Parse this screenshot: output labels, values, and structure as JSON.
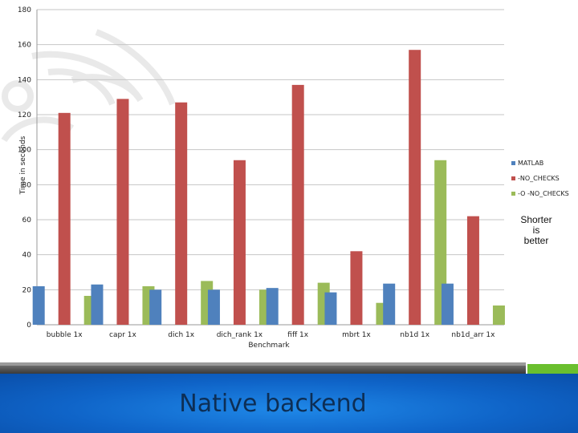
{
  "chart_data": {
    "type": "bar",
    "categories": [
      "bubble 1x",
      "capr 1x",
      "dich 1x",
      "dich_rank 1x",
      "fiff 1x",
      "mbrt 1x",
      "nb1d 1x",
      "nb1d_arr 1x"
    ],
    "series": [
      {
        "name": "MATLAB",
        "color": "#4f81bd",
        "values": [
          22,
          23,
          20,
          20,
          21,
          18.5,
          23.5,
          23.5
        ]
      },
      {
        "name": "-NO_CHECKS",
        "color": "#c0504d",
        "values": [
          121,
          129,
          127,
          94,
          137,
          42,
          157,
          62
        ]
      },
      {
        "name": "-O -NO_CHECKS",
        "color": "#9bbb59",
        "values": [
          16.5,
          22,
          25,
          20,
          24,
          12.5,
          94,
          11
        ]
      }
    ],
    "title": "",
    "xlabel": "Benchmark",
    "ylabel": "Time in seconds",
    "ylim": [
      0,
      180
    ],
    "yticks": [
      0,
      20,
      40,
      60,
      80,
      100,
      120,
      140,
      160,
      180
    ],
    "grid": true,
    "legend_position": "right"
  },
  "note": {
    "line1": "Shorter",
    "line2": "is",
    "line3": "better"
  },
  "slide": {
    "title": "Native backend"
  }
}
